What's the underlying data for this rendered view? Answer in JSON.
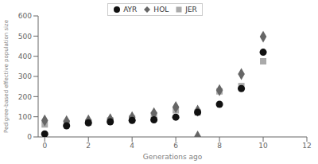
{
  "chart_data": {
    "type": "scatter",
    "xlabel": "Generations ago",
    "ylabel": "Pedigree-based effective population size",
    "series": [
      {
        "name": "AYR",
        "color": "#111111",
        "marker": "circle",
        "x": [
          0,
          1,
          2,
          3,
          4,
          5,
          6,
          7,
          8,
          9,
          10
        ],
        "values": [
          15,
          55,
          70,
          75,
          82,
          85,
          98,
          122,
          162,
          240,
          420
        ]
      },
      {
        "name": "HOL",
        "color": "#666666",
        "marker": "diamond",
        "x": [
          0,
          1,
          2,
          3,
          4,
          5,
          6,
          7,
          8,
          9,
          10,
          7
        ],
        "values": [
          82,
          78,
          82,
          88,
          98,
          118,
          148,
          130,
          232,
          312,
          497,
          2
        ]
      },
      {
        "name": "JER",
        "color": "#aaaaaa",
        "marker": "square",
        "x": [
          0,
          1,
          2,
          3,
          4,
          5,
          6,
          7,
          8,
          9,
          10
        ],
        "values": [
          62,
          68,
          72,
          82,
          92,
          108,
          132,
          122,
          226,
          252,
          375
        ]
      }
    ],
    "xlim": [
      -0.3,
      12
    ],
    "ylim": [
      0,
      600
    ],
    "xticks": [
      0,
      2,
      4,
      6,
      8,
      10,
      12
    ],
    "yticks": [
      0,
      100,
      200,
      300,
      400,
      500,
      600
    ],
    "grid": false,
    "legend": "upper center"
  }
}
